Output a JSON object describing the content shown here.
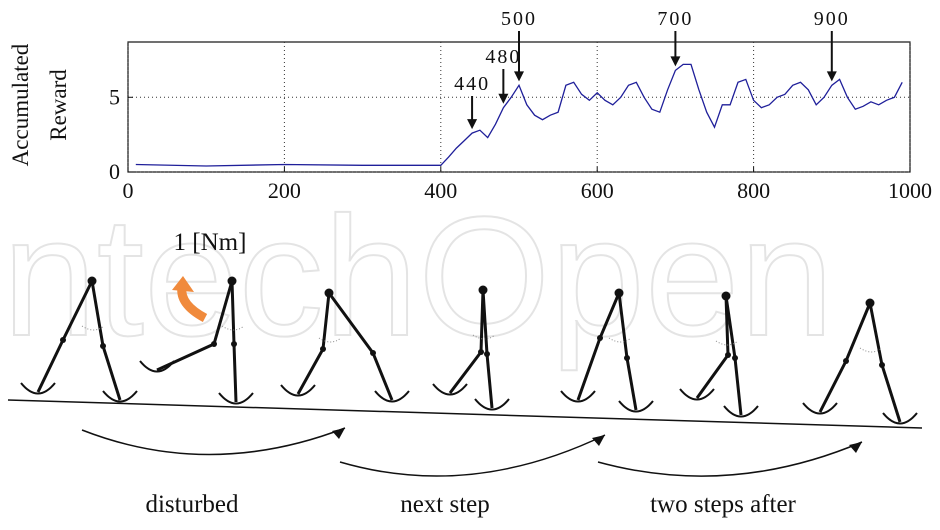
{
  "chart_data": {
    "type": "line",
    "ylabel": [
      "Accumulated",
      "Reward"
    ],
    "x": [
      10,
      100,
      200,
      300,
      400,
      410,
      420,
      430,
      440,
      450,
      460,
      470,
      480,
      490,
      500,
      510,
      520,
      530,
      540,
      550,
      560,
      570,
      580,
      590,
      600,
      610,
      620,
      630,
      640,
      650,
      660,
      670,
      680,
      690,
      700,
      710,
      720,
      730,
      740,
      750,
      760,
      770,
      780,
      790,
      800,
      810,
      820,
      830,
      840,
      850,
      860,
      870,
      880,
      890,
      900,
      910,
      920,
      930,
      940,
      950,
      960,
      970,
      980,
      990
    ],
    "values": [
      0.5,
      0.4,
      0.5,
      0.45,
      0.45,
      1.0,
      1.6,
      2.1,
      2.6,
      2.8,
      2.3,
      3.2,
      4.3,
      5.0,
      5.8,
      4.5,
      3.8,
      3.5,
      3.8,
      4.0,
      5.8,
      6.0,
      5.2,
      4.8,
      5.3,
      4.8,
      4.5,
      5.0,
      5.8,
      6.0,
      5.0,
      4.2,
      4.0,
      5.5,
      6.8,
      7.2,
      7.2,
      5.5,
      4.0,
      3.0,
      4.5,
      4.5,
      6.0,
      6.2,
      4.8,
      4.3,
      4.5,
      5.0,
      5.2,
      5.8,
      6.0,
      5.5,
      4.5,
      5.0,
      5.8,
      6.2,
      5.0,
      4.2,
      4.4,
      4.7,
      4.5,
      4.8,
      5.0,
      6.0
    ],
    "color": "#1f1f9a",
    "xlim": [
      0,
      1000
    ],
    "xticks": [
      0,
      200,
      400,
      600,
      800,
      1000
    ],
    "ylim": [
      0,
      8.7
    ],
    "yticks": [
      0,
      5
    ],
    "grid": true,
    "annotations": [
      440,
      480,
      500,
      700,
      900
    ]
  },
  "diagram": {
    "watermark": "IntechOpen",
    "torque_label": "1 [Nm]",
    "captions": [
      "disturbed",
      "next step",
      "two steps after"
    ]
  }
}
